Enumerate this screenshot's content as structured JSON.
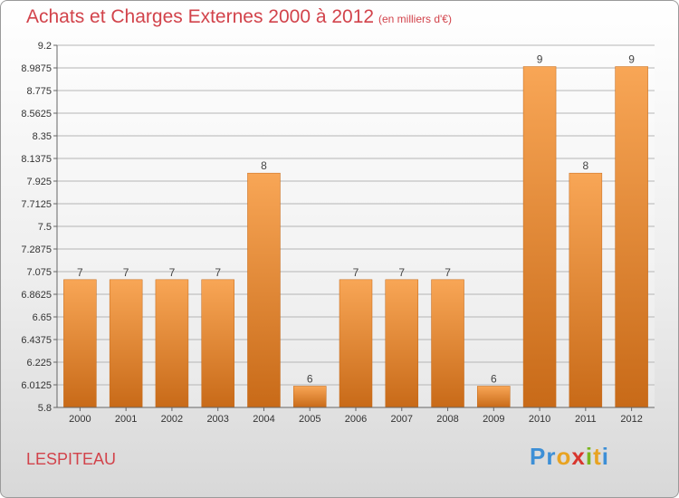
{
  "chart_data": {
    "type": "bar",
    "title": "Achats et Charges Externes 2000 à 2012",
    "subtitle": "(en milliers d'€)",
    "categories": [
      "2000",
      "2001",
      "2002",
      "2003",
      "2004",
      "2005",
      "2006",
      "2007",
      "2008",
      "2009",
      "2010",
      "2011",
      "2012"
    ],
    "values": [
      7,
      7,
      7,
      7,
      8,
      6,
      7,
      7,
      7,
      6,
      9,
      8,
      9
    ],
    "data_labels": [
      "7",
      "7",
      "7",
      "7",
      "8",
      "6",
      "7",
      "7",
      "7",
      "6",
      "9",
      "8",
      "9"
    ],
    "ylim": [
      5.8,
      9.2
    ],
    "yticks": [
      "9.2",
      "8.9875",
      "8.775",
      "8.5625",
      "8.35",
      "8.1375",
      "7.925",
      "7.7125",
      "7.5",
      "7.2875",
      "7.075",
      "6.8625",
      "6.65",
      "6.4375",
      "6.225",
      "6.0125",
      "5.8"
    ],
    "grid": true,
    "bar_color": "#f0963c"
  },
  "footer": {
    "commune": "LESPITEAU",
    "logo_letters": [
      "P",
      "r",
      "o",
      "x",
      "i",
      "t",
      "i"
    ]
  },
  "colors": {
    "title": "#d2434b",
    "logo": [
      "#3d8fd6",
      "#3d8fd6",
      "#e8a322",
      "#d8362e",
      "#7ab51d",
      "#e8a322",
      "#3d8fd6"
    ]
  }
}
